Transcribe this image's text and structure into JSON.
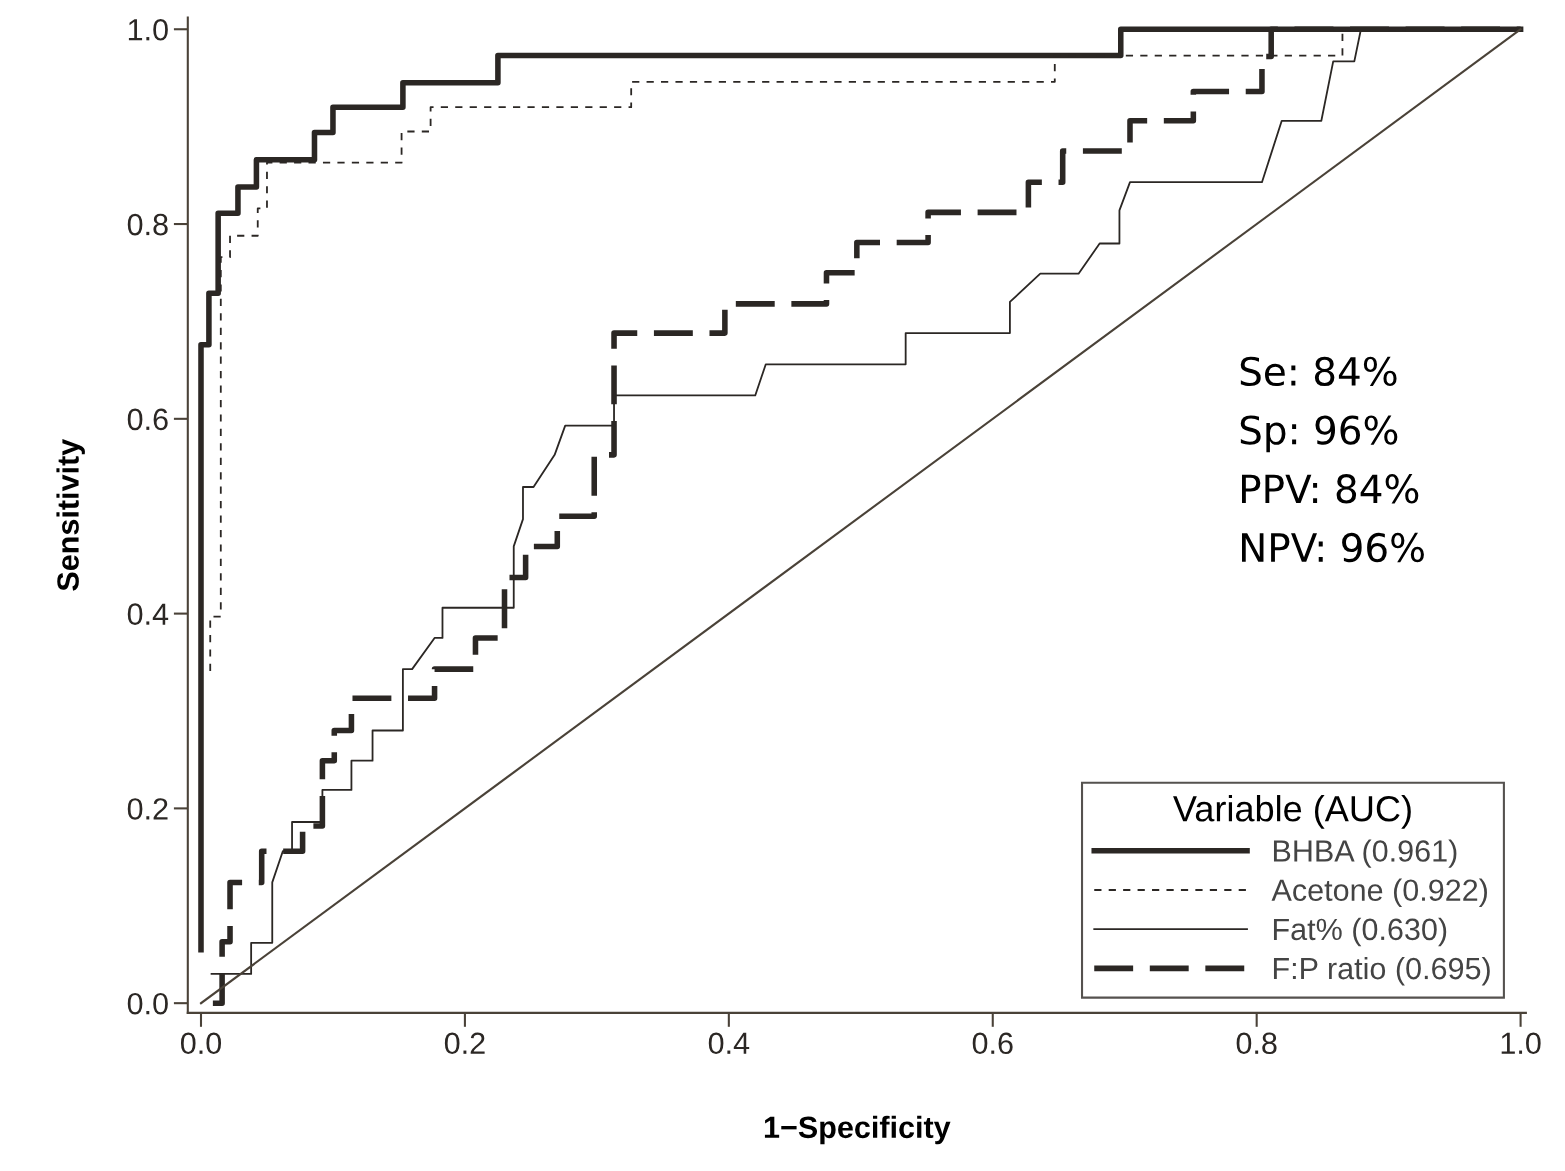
{
  "chart_data": {
    "type": "line",
    "xlabel": "1−Specificity",
    "ylabel": "Sensitivity",
    "legend_title": "Variable (AUC)",
    "legend": "bottom right",
    "grid": false,
    "marker": "none",
    "xlim": [
      -0.01,
      1.004
    ],
    "ylim": [
      -0.01,
      1.012
    ],
    "xticks": [
      {
        "value": 0,
        "label": "0.0"
      },
      {
        "value": 0.2,
        "label": "0.2"
      },
      {
        "value": 0.4,
        "label": "0.4"
      },
      {
        "value": 0.6,
        "label": "0.6"
      },
      {
        "value": 0.8,
        "label": "0.8"
      },
      {
        "value": 1,
        "label": "1.0"
      }
    ],
    "yticks": [
      {
        "value": 0,
        "label": "0.0"
      },
      {
        "value": 0.2,
        "label": "0.2"
      },
      {
        "value": 0.4,
        "label": "0.4"
      },
      {
        "value": 0.6,
        "label": "0.6"
      },
      {
        "value": 0.8,
        "label": "0.8"
      },
      {
        "value": 1,
        "label": "1.0"
      }
    ],
    "annotations": [
      "Se: 84%",
      "Sp: 96%",
      "PPV: 84%",
      "NPV: 96%"
    ],
    "series": [
      {
        "name": "BHBA (0.961)",
        "color": "#2b2724",
        "line_style": "solid",
        "x": [
          0,
          0,
          0.006,
          0.006,
          0.013,
          0.013,
          0.028,
          0.028,
          0.042,
          0.042,
          0.086,
          0.086,
          0.1,
          0.1,
          0.153,
          0.153,
          0.225,
          0.225,
          0.697,
          0.697,
          1.0
        ],
        "values": [
          0.055,
          0.676,
          0.676,
          0.729,
          0.729,
          0.811,
          0.811,
          0.838,
          0.838,
          0.866,
          0.866,
          0.894,
          0.894,
          0.92,
          0.92,
          0.945,
          0.945,
          0.973,
          0.973,
          1.0,
          1.0
        ]
      },
      {
        "name": "Acetone (0.922)",
        "color": "#2b2724",
        "line_style": "dashed",
        "x": [
          0.007,
          0.007,
          0.015,
          0.015,
          0.022,
          0.022,
          0.043,
          0.043,
          0.05,
          0.05,
          0.152,
          0.152,
          0.174,
          0.174,
          0.326,
          0.326,
          0.647,
          0.647,
          0.865,
          0.865,
          1.0
        ],
        "values": [
          0.341,
          0.397,
          0.397,
          0.766,
          0.766,
          0.788,
          0.788,
          0.816,
          0.816,
          0.863,
          0.863,
          0.895,
          0.895,
          0.92,
          0.92,
          0.946,
          0.946,
          0.973,
          0.973,
          1.0,
          1.0
        ]
      },
      {
        "name": "Fat% (0.630)",
        "color": "#2b2724",
        "line_style": "solid",
        "x": [
          0.008,
          0.038,
          0.038,
          0.054,
          0.054,
          0.062,
          0.069,
          0.069,
          0.092,
          0.092,
          0.114,
          0.114,
          0.13,
          0.13,
          0.153,
          0.153,
          0.16,
          0.177,
          0.183,
          0.183,
          0.237,
          0.237,
          0.244,
          0.244,
          0.252,
          0.268,
          0.276,
          0.313,
          0.313,
          0.42,
          0.428,
          0.534,
          0.534,
          0.613,
          0.613,
          0.636,
          0.665,
          0.681,
          0.696,
          0.696,
          0.704,
          0.804,
          0.819,
          0.849,
          0.858,
          0.874,
          0.879,
          1.0
        ],
        "values": [
          0.03,
          0.03,
          0.062,
          0.062,
          0.124,
          0.156,
          0.156,
          0.186,
          0.186,
          0.219,
          0.219,
          0.249,
          0.249,
          0.28,
          0.28,
          0.343,
          0.343,
          0.375,
          0.375,
          0.406,
          0.406,
          0.469,
          0.497,
          0.53,
          0.53,
          0.563,
          0.593,
          0.593,
          0.624,
          0.624,
          0.656,
          0.656,
          0.688,
          0.688,
          0.72,
          0.749,
          0.749,
          0.78,
          0.78,
          0.814,
          0.843,
          0.843,
          0.906,
          0.906,
          0.967,
          0.967,
          1.0,
          1.0
        ]
      },
      {
        "name": "F:P ratio (0.695)",
        "color": "#2b2724",
        "line_style": "dashed",
        "x": [
          0.009,
          0.016,
          0.016,
          0.022,
          0.022,
          0.046,
          0.046,
          0.077,
          0.077,
          0.092,
          0.092,
          0.101,
          0.101,
          0.114,
          0.114,
          0.177,
          0.177,
          0.208,
          0.208,
          0.23,
          0.23,
          0.246,
          0.246,
          0.27,
          0.27,
          0.298,
          0.298,
          0.313,
          0.313,
          0.397,
          0.397,
          0.474,
          0.474,
          0.497,
          0.497,
          0.551,
          0.551,
          0.627,
          0.627,
          0.653,
          0.653,
          0.704,
          0.704,
          0.752,
          0.752,
          0.804,
          0.804,
          0.811,
          0.811,
          1.0
        ],
        "values": [
          0.0,
          0.0,
          0.063,
          0.063,
          0.124,
          0.124,
          0.156,
          0.156,
          0.182,
          0.182,
          0.249,
          0.249,
          0.28,
          0.28,
          0.313,
          0.313,
          0.343,
          0.343,
          0.375,
          0.375,
          0.437,
          0.437,
          0.469,
          0.469,
          0.5,
          0.5,
          0.563,
          0.563,
          0.688,
          0.688,
          0.718,
          0.718,
          0.75,
          0.75,
          0.781,
          0.781,
          0.812,
          0.812,
          0.843,
          0.843,
          0.875,
          0.875,
          0.906,
          0.906,
          0.936,
          0.936,
          0.972,
          0.972,
          1.0,
          1.0
        ]
      },
      {
        "color": "#4a4238",
        "line_style": "solid",
        "x": [
          0,
          1
        ],
        "values": [
          0,
          1
        ]
      }
    ]
  }
}
